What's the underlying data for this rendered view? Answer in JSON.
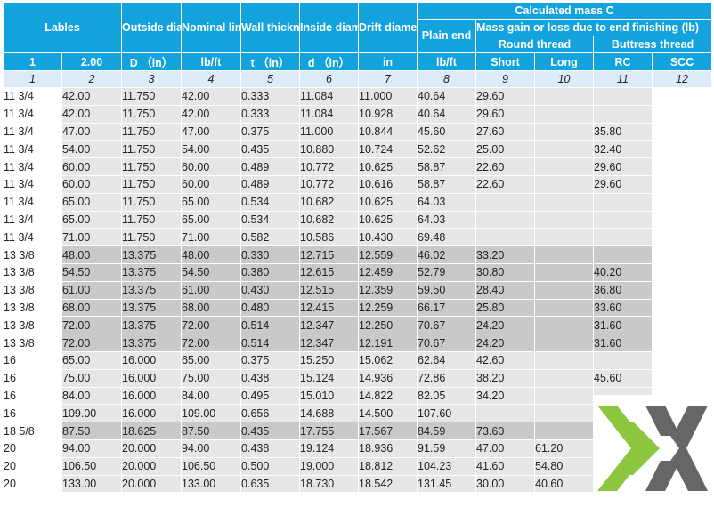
{
  "colors": {
    "header": "#13a3dc",
    "number_row": "#ddeaf7",
    "row_light": "#e6e6e6",
    "row_dark": "#c9c9c9",
    "logo_green": "#8cc63f",
    "logo_gray": "#666666"
  },
  "header": {
    "labels": "Lables",
    "outside_diameter": "Outside diameter",
    "nominal_linear_mass": "Nominal linear mass T&C",
    "wall_thickness": "Wall thickness",
    "inside_diameter": "Inside diameter",
    "drift_diameter": "Drift diameter",
    "calculated_mass": "Calculated mass C",
    "plain_end": "Plain end",
    "mass_gain": "Mass gain or loss due to end finishing (lb)",
    "round_thread": "Round thread",
    "buttress_thread": "Buttress thread",
    "short": "Short",
    "long": "Long",
    "rc": "RC",
    "scc": "SCC"
  },
  "units": [
    "1",
    "2.00",
    "D （in）",
    "lb/ft",
    "t （in）",
    "d （in）",
    "in",
    "lb/ft",
    "Short",
    "Long",
    "RC",
    "SCC"
  ],
  "column_numbers": [
    "1",
    "2",
    "3",
    "4",
    "5",
    "6",
    "7",
    "8",
    "9",
    "10",
    "11",
    "12"
  ],
  "rows": [
    [
      "11 3/4",
      "42.00",
      "11.750",
      "42.00",
      "0.333",
      "11.084",
      "11.000",
      "40.64",
      "29.60",
      "",
      "",
      ""
    ],
    [
      "11 3/4",
      "42.00",
      "11.750",
      "42.00",
      "0.333",
      "11.084",
      "10.928",
      "40.64",
      "29.60",
      "",
      "",
      ""
    ],
    [
      "11 3/4",
      "47.00",
      "11.750",
      "47.00",
      "0.375",
      "11.000",
      "10.844",
      "45.60",
      "27.60",
      "",
      "35.80",
      ""
    ],
    [
      "11 3/4",
      "54.00",
      "11.750",
      "54.00",
      "0.435",
      "10.880",
      "10.724",
      "52.62",
      "25.00",
      "",
      "32.40",
      ""
    ],
    [
      "11 3/4",
      "60.00",
      "11.750",
      "60.00",
      "0.489",
      "10.772",
      "10.625",
      "58.87",
      "22.60",
      "",
      "29.60",
      ""
    ],
    [
      "11 3/4",
      "60.00",
      "11.750",
      "60.00",
      "0.489",
      "10.772",
      "10.616",
      "58.87",
      "22.60",
      "",
      "29.60",
      ""
    ],
    [
      "11 3/4",
      "65.00",
      "11.750",
      "65.00",
      "0.534",
      "10.682",
      "10.625",
      "64.03",
      "",
      "",
      "",
      ""
    ],
    [
      "11 3/4",
      "65.00",
      "11.750",
      "65.00",
      "0.534",
      "10.682",
      "10.625",
      "64.03",
      "",
      "",
      "",
      ""
    ],
    [
      "11 3/4",
      "71.00",
      "11.750",
      "71.00",
      "0.582",
      "10.586",
      "10.430",
      "69.48",
      "",
      "",
      "",
      ""
    ],
    [
      "13 3/8",
      "48.00",
      "13.375",
      "48.00",
      "0.330",
      "12.715",
      "12.559",
      "46.02",
      "33.20",
      "",
      "",
      ""
    ],
    [
      "13 3/8",
      "54.50",
      "13.375",
      "54.50",
      "0.380",
      "12.615",
      "12.459",
      "52.79",
      "30.80",
      "",
      "40.20",
      ""
    ],
    [
      "13 3/8",
      "61.00",
      "13.375",
      "61.00",
      "0.430",
      "12.515",
      "12.359",
      "59.50",
      "28.40",
      "",
      "36.80",
      ""
    ],
    [
      "13 3/8",
      "68.00",
      "13.375",
      "68.00",
      "0.480",
      "12.415",
      "12.259",
      "66.17",
      "25.80",
      "",
      "33.60",
      ""
    ],
    [
      "13 3/8",
      "72.00",
      "13.375",
      "72.00",
      "0.514",
      "12.347",
      "12.250",
      "70.67",
      "24.20",
      "",
      "31.60",
      ""
    ],
    [
      "13 3/8",
      "72.00",
      "13.375",
      "72.00",
      "0.514",
      "12.347",
      "12.191",
      "70.67",
      "24.20",
      "",
      "31.60",
      ""
    ],
    [
      "16",
      "65.00",
      "16.000",
      "65.00",
      "0.375",
      "15.250",
      "15.062",
      "62.64",
      "42.60",
      "",
      "",
      ""
    ],
    [
      "16",
      "75.00",
      "16.000",
      "75.00",
      "0.438",
      "15.124",
      "14.936",
      "72.86",
      "38.20",
      "",
      "45.60",
      ""
    ],
    [
      "16",
      "84.00",
      "16.000",
      "84.00",
      "0.495",
      "15.010",
      "14.822",
      "82.05",
      "34.20",
      "",
      "",
      ""
    ],
    [
      "16",
      "109.00",
      "16.000",
      "109.00",
      "0.656",
      "14.688",
      "14.500",
      "107.60",
      "",
      "",
      "",
      ""
    ],
    [
      "18 5/8",
      "87.50",
      "18.625",
      "87.50",
      "0.435",
      "17.755",
      "17.567",
      "84.59",
      "73.60",
      "",
      "",
      ""
    ],
    [
      "20",
      "94.00",
      "20.000",
      "94.00",
      "0.438",
      "19.124",
      "18.936",
      "91.59",
      "47.00",
      "61.20",
      "",
      ""
    ],
    [
      "20",
      "106.50",
      "20.000",
      "106.50",
      "0.500",
      "19.000",
      "18.812",
      "104.23",
      "41.60",
      "54.80",
      "",
      ""
    ],
    [
      "20",
      "133.00",
      "20.000",
      "133.00",
      "0.635",
      "18.730",
      "18.542",
      "131.45",
      "30.00",
      "40.60",
      "",
      ""
    ]
  ],
  "dark_rows": [
    9,
    10,
    11,
    12,
    13,
    14,
    19
  ],
  "white_cells": [
    "c1",
    "c12"
  ]
}
